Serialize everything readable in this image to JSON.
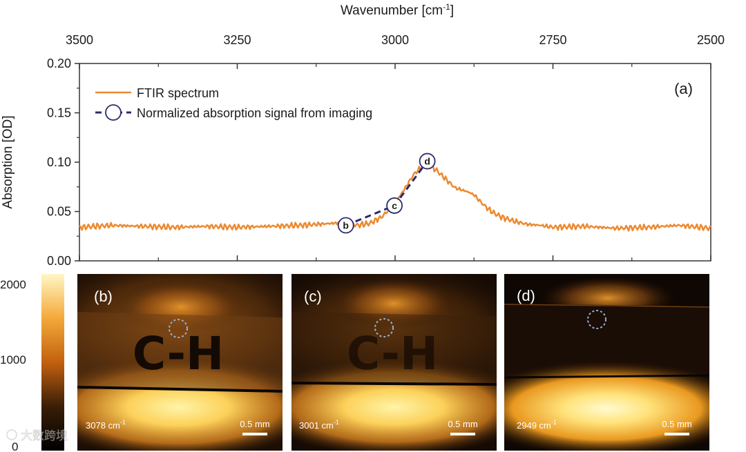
{
  "chart_data": {
    "type": "line",
    "panel_label": "(a)",
    "xlabel": "Wavenumber [cm",
    "xlabel_sup": "-1",
    "xlabel_close": "]",
    "ylabel": "Absorption [OD]",
    "xlim": [
      3500,
      2500
    ],
    "ylim": [
      0.0,
      0.2
    ],
    "x_ticks": [
      3500,
      3250,
      3000,
      2750,
      2500
    ],
    "y_ticks": [
      "0.00",
      "0.05",
      "0.10",
      "0.15",
      "0.20"
    ],
    "legend": {
      "placement": "top-left",
      "ftir_label": "FTIR spectrum",
      "imaging_label": "Normalized absorption signal from imaging"
    },
    "series": [
      {
        "name": "FTIR spectrum",
        "color": "#ec8a30",
        "x": [
          3500,
          3450,
          3400,
          3350,
          3300,
          3250,
          3200,
          3150,
          3100,
          3078,
          3060,
          3040,
          3020,
          3010,
          3001,
          2990,
          2980,
          2970,
          2960,
          2955,
          2950,
          2945,
          2935,
          2925,
          2915,
          2905,
          2895,
          2885,
          2875,
          2865,
          2855,
          2845,
          2830,
          2810,
          2790,
          2770,
          2750,
          2700,
          2650,
          2600,
          2550,
          2500
        ],
        "y": [
          0.034,
          0.036,
          0.035,
          0.034,
          0.035,
          0.034,
          0.035,
          0.036,
          0.038,
          0.039,
          0.036,
          0.038,
          0.045,
          0.052,
          0.058,
          0.068,
          0.078,
          0.088,
          0.094,
          0.098,
          0.1,
          0.097,
          0.092,
          0.086,
          0.08,
          0.074,
          0.072,
          0.07,
          0.067,
          0.06,
          0.054,
          0.049,
          0.044,
          0.04,
          0.037,
          0.036,
          0.034,
          0.035,
          0.033,
          0.034,
          0.036,
          0.033
        ]
      },
      {
        "name": "Normalized absorption signal from imaging",
        "color": "#2b2a6e",
        "points": [
          {
            "x": 3078,
            "y": 0.036,
            "label": "b"
          },
          {
            "x": 3001,
            "y": 0.056,
            "label": "c"
          },
          {
            "x": 2949,
            "y": 0.101,
            "label": "d"
          }
        ]
      }
    ]
  },
  "colorbar": {
    "ticks": [
      "2000",
      "1000",
      "0"
    ],
    "range": [
      0,
      2000
    ]
  },
  "panels": [
    {
      "label": "(b)",
      "wavenumber": "3078 cm",
      "sup": "-1",
      "scale": "0.5 mm",
      "letters": "C-H"
    },
    {
      "label": "(c)",
      "wavenumber": "3001 cm",
      "sup": "-1",
      "scale": "0.5 mm",
      "letters": "C-H"
    },
    {
      "label": "(d)",
      "wavenumber": "2949 cm",
      "sup": "-1",
      "scale": "0.5 mm"
    }
  ],
  "watermark": "大数跨境"
}
